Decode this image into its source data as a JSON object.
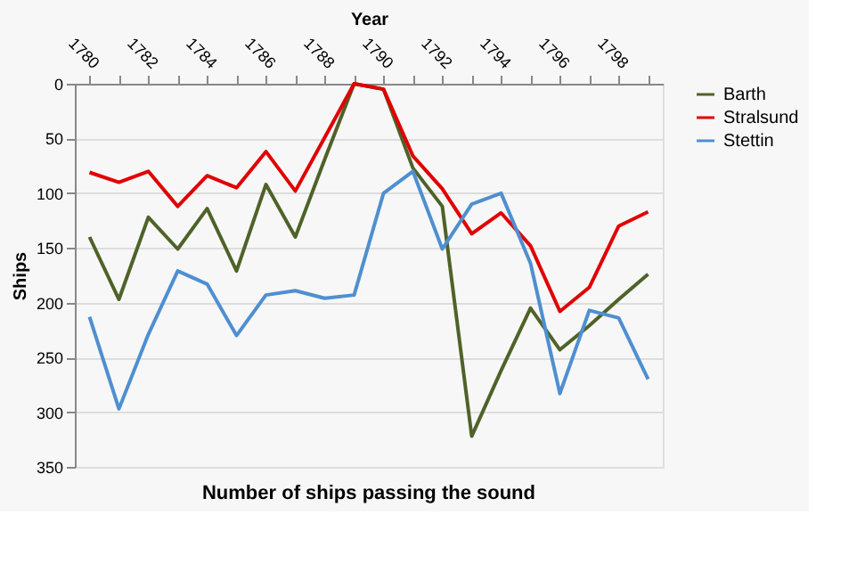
{
  "chart_data": {
    "type": "line",
    "title": "Number of ships passing the sound",
    "xlabel": "Year",
    "ylabel": "Ships",
    "categories": [
      "1780",
      null,
      "1782",
      null,
      "1784",
      null,
      "1786",
      null,
      "1788",
      null,
      "1790",
      null,
      "1792",
      null,
      "1794",
      null,
      "1796",
      null,
      "1798",
      null
    ],
    "series": [
      {
        "name": "Barth",
        "color": "#4f6228",
        "values": [
          140,
          197,
          122,
          151,
          114,
          171,
          92,
          140,
          69,
          0,
          5,
          77,
          112,
          322,
          262,
          205,
          243,
          221,
          197,
          174
        ]
      },
      {
        "name": "Stralsund",
        "color": "#e00000",
        "values": [
          81,
          90,
          80,
          112,
          84,
          95,
          62,
          98,
          49,
          0,
          5,
          66,
          96,
          137,
          118,
          148,
          208,
          186,
          130,
          117
        ]
      },
      {
        "name": "Stettin",
        "color": "#4f8fd0",
        "values": [
          213,
          297,
          229,
          171,
          183,
          230,
          193,
          189,
          196,
          193,
          100,
          80,
          151,
          110,
          100,
          164,
          283,
          207,
          214,
          270
        ]
      }
    ],
    "ylim": [
      350,
      0
    ],
    "yticks": [
      0,
      50,
      100,
      150,
      200,
      250,
      300,
      350
    ],
    "grid": "y",
    "legend": "right",
    "marker": "none",
    "line_style": "solid"
  }
}
